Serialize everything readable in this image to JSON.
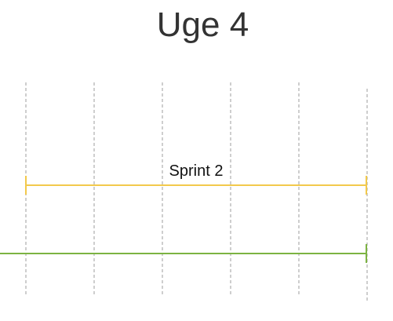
{
  "header": {
    "title": "Uge 4"
  },
  "timeline": {
    "gridlines": 6,
    "bars": [
      {
        "label": "Sprint 2",
        "color": "#f2c94c",
        "start_cap": true,
        "end_cap": true
      },
      {
        "label": "",
        "color": "#7cb342",
        "start_cap": false,
        "end_cap": true
      }
    ]
  }
}
